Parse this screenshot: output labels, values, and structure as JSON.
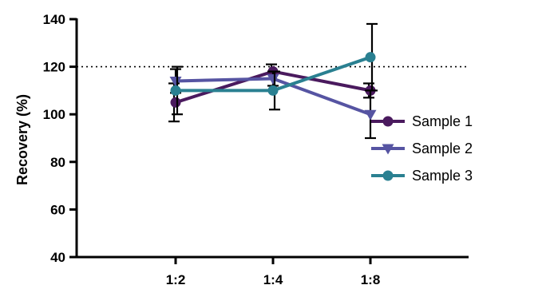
{
  "chart_data": {
    "type": "line",
    "ylabel": "Recovery (%)",
    "xlabel": "",
    "categories": [
      "1:2",
      "1:4",
      "1:8"
    ],
    "ylim": [
      40,
      140
    ],
    "yticks": [
      40,
      60,
      80,
      100,
      120,
      140
    ],
    "reference_line": {
      "y": 120,
      "style": "dotted"
    },
    "grid": false,
    "legend_position": "right",
    "series": [
      {
        "name": "Sample 1",
        "marker": "circle",
        "color": "#4a1a5e",
        "values": [
          105,
          118,
          110
        ],
        "errors": [
          8,
          3,
          3
        ]
      },
      {
        "name": "Sample 2",
        "marker": "triangle-down",
        "color": "#5654a2",
        "values": [
          114,
          115,
          100
        ],
        "errors": [
          5,
          3,
          10
        ]
      },
      {
        "name": "Sample 3",
        "marker": "circle",
        "color": "#2a8091",
        "values": [
          110,
          110,
          124
        ],
        "errors": [
          10,
          8,
          14
        ]
      }
    ]
  }
}
